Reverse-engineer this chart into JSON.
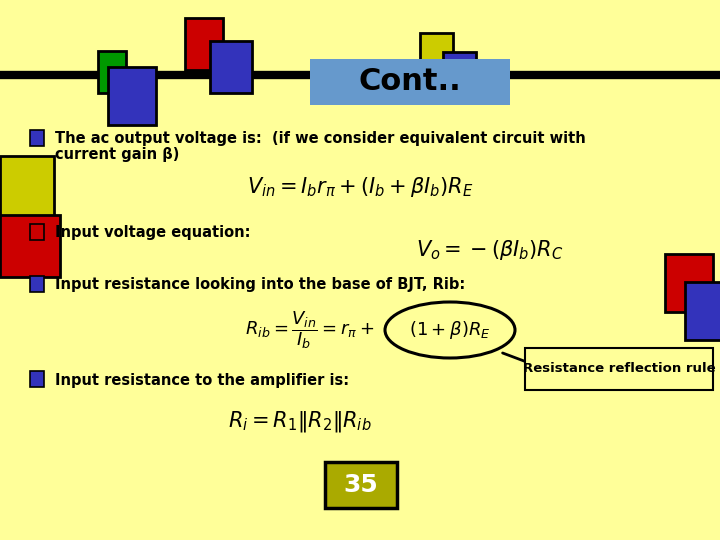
{
  "bg_color": "#FFFF99",
  "title": "Cont..",
  "title_bg": "#6699CC",
  "page_num": "35",
  "reflection_label": "Resistance reflection rule",
  "figw": 7.2,
  "figh": 5.4,
  "dpi": 100
}
